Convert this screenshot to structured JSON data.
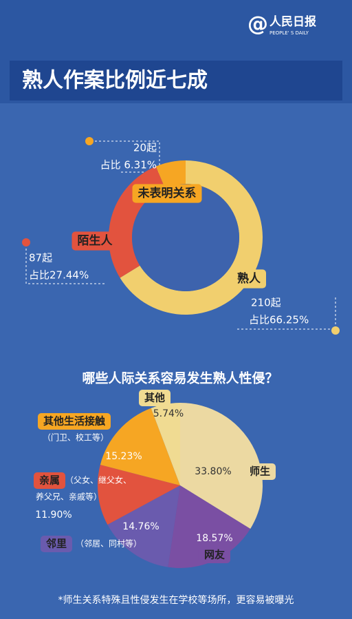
{
  "header": {
    "logo_symbol": "@",
    "logo_name": "人民日报",
    "logo_en": "PEOPLE' S DAILY",
    "title": "熟人作案比例近七成"
  },
  "chart_data": [
    {
      "type": "donut",
      "categories": [
        "熟人",
        "陌生人",
        "未表明关系"
      ],
      "values": [
        210,
        87,
        20
      ],
      "value_labels": [
        "210起",
        "87起",
        "20起"
      ],
      "shares": [
        66.25,
        27.44,
        6.31
      ],
      "share_labels": [
        "占比66.25%",
        "占比27.44%",
        "占比 6.31%"
      ],
      "colors": [
        "#f1cf6e",
        "#e2533e",
        "#f6a623"
      ],
      "hole_color": "#3d63ad"
    },
    {
      "type": "pie",
      "title": "哪些人际关系容易发生熟人性侵？",
      "categories": [
        "师生",
        "网友",
        "邻里",
        "亲属",
        "其他生活接触",
        "其他"
      ],
      "category_notes": [
        null,
        null,
        [
          "（邻居、同村等）"
        ],
        [
          "（父女、继父女、",
          "养父兄、亲戚等）"
        ],
        [
          "（门卫、校工等）"
        ],
        null
      ],
      "values": [
        33.8,
        18.57,
        14.76,
        11.9,
        15.23,
        5.74
      ],
      "value_labels": [
        "33.80%",
        "18.57%",
        "14.76%",
        "11.90%",
        "15.23%",
        "5.74%"
      ],
      "colors": [
        "#ecd9a2",
        "#7a4fa3",
        "#6a5bae",
        "#e2533e",
        "#f6a623",
        "#f0db92"
      ]
    }
  ],
  "footnote": "*师生关系特殊且性侵发生在学校等场所，更容易被曝光"
}
